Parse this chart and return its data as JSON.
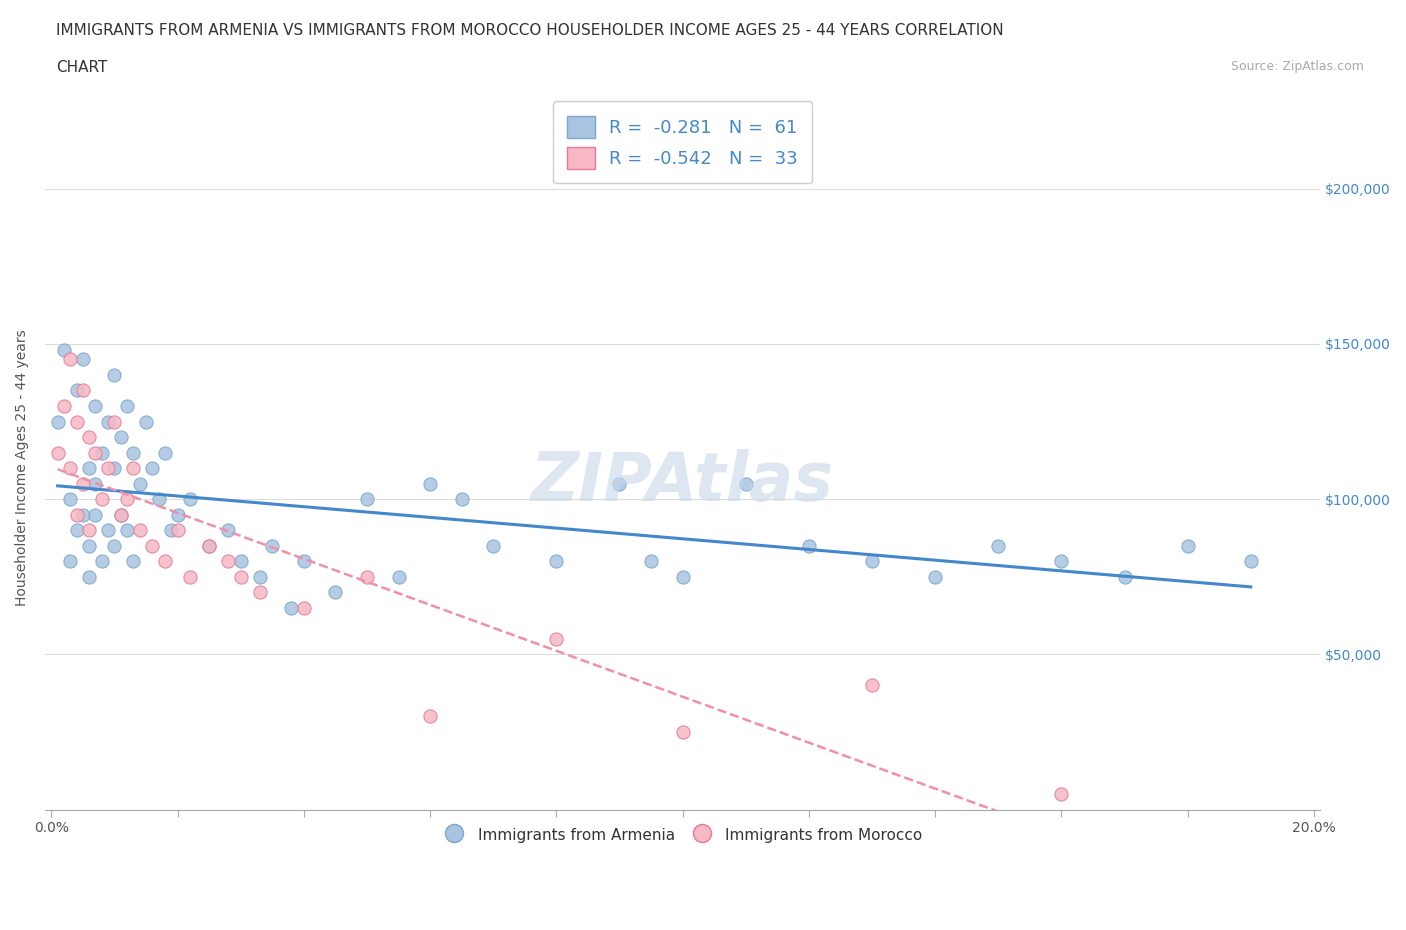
{
  "title_line1": "IMMIGRANTS FROM ARMENIA VS IMMIGRANTS FROM MOROCCO HOUSEHOLDER INCOME AGES 25 - 44 YEARS CORRELATION",
  "title_line2": "CHART",
  "source_text": "Source: ZipAtlas.com",
  "ylabel": "Householder Income Ages 25 - 44 years",
  "xlim": [
    0.0,
    0.2
  ],
  "ylim": [
    0,
    220000
  ],
  "xticks": [
    0.0,
    0.02,
    0.04,
    0.06,
    0.08,
    0.1,
    0.12,
    0.14,
    0.16,
    0.18,
    0.2
  ],
  "ytick_positions": [
    0,
    50000,
    100000,
    150000,
    200000
  ],
  "armenia_color": "#a8c4e0",
  "armenia_edge": "#7aa8cc",
  "morocco_color": "#f5b8c4",
  "morocco_edge": "#e87898",
  "armenia_line_color": "#4488cc",
  "morocco_line_color": "#f090a8",
  "legend_text_color": "#4488cc",
  "grid_color": "#dddddd",
  "watermark_color": "#c8d8e8",
  "armenia_R": -0.281,
  "armenia_N": 61,
  "morocco_R": -0.542,
  "morocco_N": 33,
  "armenia_x": [
    0.001,
    0.002,
    0.003,
    0.003,
    0.004,
    0.004,
    0.005,
    0.005,
    0.006,
    0.006,
    0.006,
    0.007,
    0.007,
    0.007,
    0.008,
    0.008,
    0.009,
    0.009,
    0.01,
    0.01,
    0.01,
    0.011,
    0.011,
    0.012,
    0.012,
    0.013,
    0.013,
    0.014,
    0.015,
    0.016,
    0.017,
    0.018,
    0.019,
    0.02,
    0.022,
    0.025,
    0.028,
    0.03,
    0.033,
    0.035,
    0.038,
    0.04,
    0.045,
    0.05,
    0.055,
    0.06,
    0.065,
    0.07,
    0.08,
    0.09,
    0.095,
    0.1,
    0.11,
    0.12,
    0.13,
    0.14,
    0.15,
    0.16,
    0.17,
    0.18,
    0.19
  ],
  "armenia_y": [
    125000,
    148000,
    80000,
    100000,
    135000,
    90000,
    145000,
    95000,
    110000,
    85000,
    75000,
    130000,
    105000,
    95000,
    115000,
    80000,
    125000,
    90000,
    140000,
    110000,
    85000,
    120000,
    95000,
    130000,
    90000,
    115000,
    80000,
    105000,
    125000,
    110000,
    100000,
    115000,
    90000,
    95000,
    100000,
    85000,
    90000,
    80000,
    75000,
    85000,
    65000,
    80000,
    70000,
    100000,
    75000,
    105000,
    100000,
    85000,
    80000,
    105000,
    80000,
    75000,
    105000,
    85000,
    80000,
    75000,
    85000,
    80000,
    75000,
    85000,
    80000
  ],
  "morocco_x": [
    0.001,
    0.002,
    0.003,
    0.003,
    0.004,
    0.004,
    0.005,
    0.005,
    0.006,
    0.006,
    0.007,
    0.008,
    0.009,
    0.01,
    0.011,
    0.012,
    0.013,
    0.014,
    0.016,
    0.018,
    0.02,
    0.022,
    0.025,
    0.028,
    0.03,
    0.033,
    0.04,
    0.05,
    0.06,
    0.08,
    0.1,
    0.13,
    0.16
  ],
  "morocco_y": [
    115000,
    130000,
    145000,
    110000,
    125000,
    95000,
    135000,
    105000,
    120000,
    90000,
    115000,
    100000,
    110000,
    125000,
    95000,
    100000,
    110000,
    90000,
    85000,
    80000,
    90000,
    75000,
    85000,
    80000,
    75000,
    70000,
    65000,
    75000,
    30000,
    55000,
    25000,
    40000,
    5000
  ]
}
